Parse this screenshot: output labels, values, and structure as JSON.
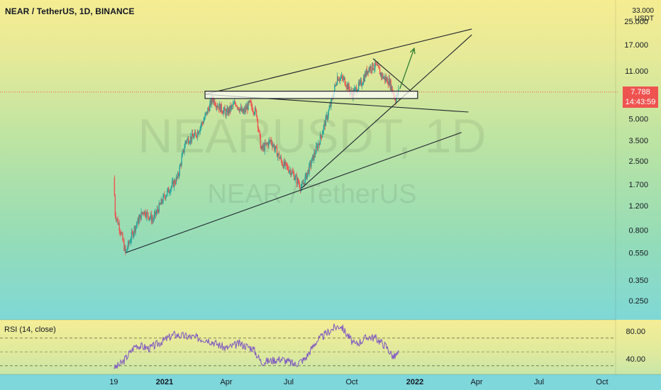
{
  "header": {
    "symbol_line": "NEAR / TetherUS, 1D, BINANCE"
  },
  "watermark": {
    "big": "NEARUSDT, 1D",
    "small": "NEAR / TetherUS"
  },
  "price_axis": {
    "unit_top": "33.000",
    "unit": "USDT"
  },
  "last_price": {
    "value": "7.788",
    "countdown": "14:43:59",
    "color": "#ef5350"
  },
  "rsi": {
    "label": "RSI (14, close)",
    "color": "#7e57c2"
  },
  "colors": {
    "up": "#26a69a",
    "down": "#ef5350",
    "lines": "#1e222d",
    "arrow": "#2e7d32"
  },
  "chart_data": [
    {
      "type": "candlestick",
      "title": "NEAR / TetherUS, 1D, BINANCE",
      "scale": "log",
      "ylabel": "USDT",
      "ylim": [
        0.22,
        33
      ],
      "y_ticks": [
        "25.000",
        "17.000",
        "11.000",
        "7.788",
        "5.000",
        "3.500",
        "2.500",
        "1.700",
        "1.200",
        "0.800",
        "0.550",
        "0.350",
        "0.250"
      ],
      "x_ticks": [
        "19",
        "2021",
        "Apr",
        "Jul",
        "Oct",
        "2022",
        "Apr",
        "Jul",
        "Oct"
      ],
      "x_range": [
        "2020-10-19",
        "2022-11-01"
      ],
      "series": [
        {
          "name": "close",
          "points": [
            {
              "date": "2020-10-19",
              "value": 1.9
            },
            {
              "date": "2020-10-21",
              "value": 1.05
            },
            {
              "date": "2020-10-28",
              "value": 0.82
            },
            {
              "date": "2020-11-05",
              "value": 0.55
            },
            {
              "date": "2020-11-18",
              "value": 0.82
            },
            {
              "date": "2020-12-01",
              "value": 1.1
            },
            {
              "date": "2020-12-15",
              "value": 0.95
            },
            {
              "date": "2021-01-01",
              "value": 1.4
            },
            {
              "date": "2021-01-20",
              "value": 1.9
            },
            {
              "date": "2021-02-01",
              "value": 3.5
            },
            {
              "date": "2021-02-15",
              "value": 3.8
            },
            {
              "date": "2021-02-28",
              "value": 5.0
            },
            {
              "date": "2021-03-12",
              "value": 7.0
            },
            {
              "date": "2021-03-20",
              "value": 6.2
            },
            {
              "date": "2021-04-01",
              "value": 5.5
            },
            {
              "date": "2021-04-15",
              "value": 6.5
            },
            {
              "date": "2021-04-25",
              "value": 5.5
            },
            {
              "date": "2021-05-05",
              "value": 6.4
            },
            {
              "date": "2021-05-15",
              "value": 5.5
            },
            {
              "date": "2021-05-22",
              "value": 3.0
            },
            {
              "date": "2021-06-05",
              "value": 3.5
            },
            {
              "date": "2021-06-22",
              "value": 2.4
            },
            {
              "date": "2021-07-05",
              "value": 2.1
            },
            {
              "date": "2021-07-20",
              "value": 1.6
            },
            {
              "date": "2021-08-01",
              "value": 2.3
            },
            {
              "date": "2021-08-15",
              "value": 3.5
            },
            {
              "date": "2021-09-01",
              "value": 6.5
            },
            {
              "date": "2021-09-10",
              "value": 10.0
            },
            {
              "date": "2021-09-20",
              "value": 9.5
            },
            {
              "date": "2021-10-01",
              "value": 7.5
            },
            {
              "date": "2021-10-15",
              "value": 9.0
            },
            {
              "date": "2021-10-25",
              "value": 11.5
            },
            {
              "date": "2021-11-05",
              "value": 12.0
            },
            {
              "date": "2021-11-15",
              "value": 10.0
            },
            {
              "date": "2021-11-25",
              "value": 9.2
            },
            {
              "date": "2021-12-04",
              "value": 6.9
            },
            {
              "date": "2021-12-08",
              "value": 7.8
            }
          ]
        }
      ],
      "annotations": [
        {
          "type": "support_line",
          "from": {
            "date": "2020-11-05",
            "value": 0.55
          },
          "to": {
            "date": "2022-03-10",
            "value": 4.0
          }
        },
        {
          "type": "trend_line",
          "from": {
            "date": "2021-07-20",
            "value": 1.6
          },
          "to": {
            "date": "2022-03-25",
            "value": 20.0
          }
        },
        {
          "type": "upper_line",
          "from": {
            "date": "2021-03-01",
            "value": 7.5
          },
          "to": {
            "date": "2022-03-25",
            "value": 22.0
          }
        },
        {
          "type": "descending_line",
          "from": {
            "date": "2021-03-01",
            "value": 7.5
          },
          "to": {
            "date": "2022-03-20",
            "value": 5.6
          }
        },
        {
          "type": "zone",
          "from": "2021-03-01",
          "to": "2022-01-05",
          "low": 7.0,
          "high": 7.9
        },
        {
          "type": "wedge_line",
          "from": {
            "date": "2021-11-01",
            "value": 13.5
          },
          "to": {
            "date": "2021-12-25",
            "value": 8.0
          }
        },
        {
          "type": "arrow",
          "from": {
            "date": "2021-12-10",
            "value": 8.2
          },
          "to": {
            "date": "2021-12-31",
            "value": 16.0
          }
        }
      ]
    },
    {
      "type": "line",
      "title": "RSI (14, close)",
      "ylim": [
        25,
        95
      ],
      "y_ticks": [
        "80.00",
        "40.00"
      ],
      "series": [
        {
          "name": "RSI",
          "points": [
            {
              "date": "2020-10-19",
              "value": 25
            },
            {
              "date": "2020-11-01",
              "value": 35
            },
            {
              "date": "2020-11-20",
              "value": 60
            },
            {
              "date": "2020-12-10",
              "value": 55
            },
            {
              "date": "2021-01-15",
              "value": 75
            },
            {
              "date": "2021-02-05",
              "value": 72
            },
            {
              "date": "2021-03-05",
              "value": 68
            },
            {
              "date": "2021-04-01",
              "value": 55
            },
            {
              "date": "2021-04-20",
              "value": 62
            },
            {
              "date": "2021-05-10",
              "value": 55
            },
            {
              "date": "2021-05-22",
              "value": 35
            },
            {
              "date": "2021-06-20",
              "value": 40
            },
            {
              "date": "2021-07-10",
              "value": 32
            },
            {
              "date": "2021-07-25",
              "value": 40
            },
            {
              "date": "2021-08-10",
              "value": 65
            },
            {
              "date": "2021-09-05",
              "value": 85
            },
            {
              "date": "2021-09-15",
              "value": 88
            },
            {
              "date": "2021-10-05",
              "value": 60
            },
            {
              "date": "2021-10-25",
              "value": 72
            },
            {
              "date": "2021-11-05",
              "value": 70
            },
            {
              "date": "2021-11-20",
              "value": 58
            },
            {
              "date": "2021-12-01",
              "value": 42
            },
            {
              "date": "2021-12-08",
              "value": 48
            }
          ]
        }
      ]
    }
  ]
}
